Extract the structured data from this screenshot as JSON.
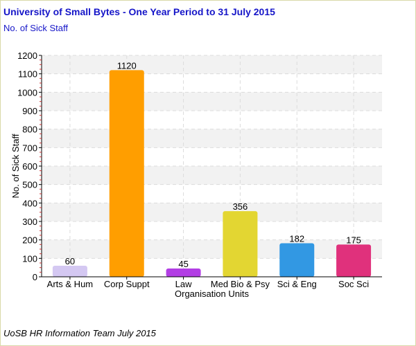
{
  "chart_data": {
    "type": "bar",
    "title": "University of Small Bytes - One Year Period to 31 July 2015",
    "subtitle": "No. of Sick Staff",
    "xlabel": "Organisation Units",
    "ylabel": "No. of Sick Staff",
    "ylim": [
      0,
      1200
    ],
    "yticks": [
      0,
      100,
      200,
      300,
      400,
      500,
      600,
      700,
      800,
      900,
      1000,
      1100,
      1200
    ],
    "categories": [
      "Arts & Hum",
      "Corp Suppt",
      "Law",
      "Med Bio & Psy",
      "Sci & Eng",
      "Soc Sci"
    ],
    "values": [
      60,
      1120,
      45,
      356,
      182,
      175
    ],
    "data_labels": [
      "60",
      "1120",
      "45",
      "356",
      "182",
      "175"
    ],
    "colors": [
      "#d4c8f2",
      "#ff9e00",
      "#b23ee4",
      "#e3d632",
      "#3298e3",
      "#e0317c"
    ],
    "grid": true,
    "footer": "UoSB HR Information Team July 2015"
  }
}
